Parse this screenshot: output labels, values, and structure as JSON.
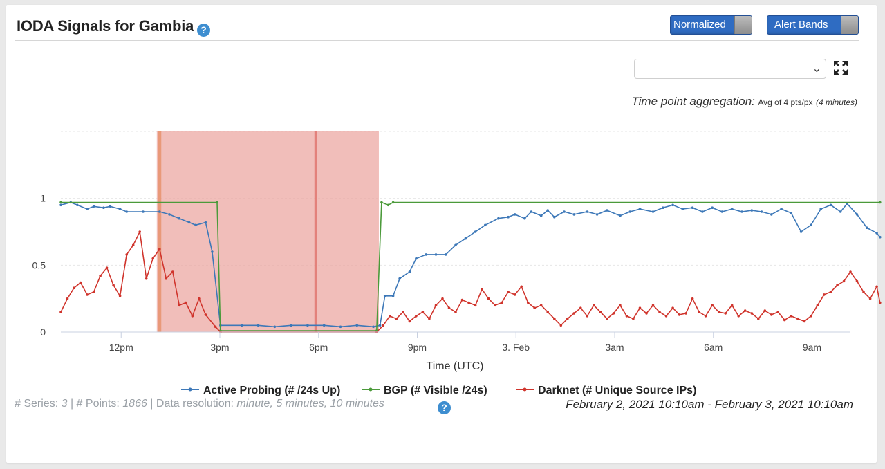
{
  "header": {
    "title": "IODA Signals for Gambia",
    "help_glyph": "?"
  },
  "toggles": {
    "normalized_label": "Normalized",
    "alert_bands_label": "Alert Bands"
  },
  "selector": {
    "value": ""
  },
  "aggregation": {
    "label": "Time point aggregation:",
    "value": "Avg of 4 pts/px",
    "detail": "(4 minutes)"
  },
  "chart_data": {
    "type": "line",
    "xlabel": "Time (UTC)",
    "ylabel": "",
    "x_range": [
      "2021-02-02T10:10",
      "2021-02-03T10:10"
    ],
    "ylim": [
      0,
      1.5
    ],
    "y_ticks": [
      "0",
      "0.5",
      "1"
    ],
    "x_ticks": [
      {
        "t": "2021-02-02T12:00",
        "label": "12pm"
      },
      {
        "t": "2021-02-02T15:00",
        "label": "3pm"
      },
      {
        "t": "2021-02-02T18:00",
        "label": "6pm"
      },
      {
        "t": "2021-02-02T21:00",
        "label": "9pm"
      },
      {
        "t": "2021-02-03T00:00",
        "label": "3. Feb"
      },
      {
        "t": "2021-02-03T03:00",
        "label": "3am"
      },
      {
        "t": "2021-02-03T06:00",
        "label": "6am"
      },
      {
        "t": "2021-02-03T09:00",
        "label": "9am"
      }
    ],
    "alert_band": {
      "start": "2021-02-02T13:05",
      "end": "2021-02-02T19:50",
      "color": "#eba59f"
    },
    "alert_marker": "2021-02-02T17:55",
    "series": [
      {
        "name": "Active Probing (# /24s Up)",
        "color": "#3d78b8",
        "points": [
          [
            0,
            0.95
          ],
          [
            0.3,
            0.97
          ],
          [
            0.5,
            0.95
          ],
          [
            0.8,
            0.92
          ],
          [
            1,
            0.94
          ],
          [
            1.3,
            0.93
          ],
          [
            1.5,
            0.94
          ],
          [
            1.8,
            0.92
          ],
          [
            2,
            0.9
          ],
          [
            2.5,
            0.9
          ],
          [
            3,
            0.9
          ],
          [
            3.3,
            0.88
          ],
          [
            3.6,
            0.85
          ],
          [
            3.9,
            0.82
          ],
          [
            4.1,
            0.8
          ],
          [
            4.4,
            0.82
          ],
          [
            4.6,
            0.6
          ],
          [
            4.85,
            0.05
          ],
          [
            5.5,
            0.05
          ],
          [
            6,
            0.05
          ],
          [
            6.5,
            0.04
          ],
          [
            7,
            0.05
          ],
          [
            7.5,
            0.05
          ],
          [
            8,
            0.05
          ],
          [
            8.5,
            0.04
          ],
          [
            9,
            0.05
          ],
          [
            9.5,
            0.04
          ],
          [
            9.7,
            0.05
          ],
          [
            9.85,
            0.27
          ],
          [
            10.1,
            0.27
          ],
          [
            10.3,
            0.4
          ],
          [
            10.6,
            0.45
          ],
          [
            10.8,
            0.55
          ],
          [
            11.1,
            0.58
          ],
          [
            11.4,
            0.58
          ],
          [
            11.7,
            0.58
          ],
          [
            12,
            0.65
          ],
          [
            12.3,
            0.7
          ],
          [
            12.6,
            0.75
          ],
          [
            12.9,
            0.8
          ],
          [
            13.3,
            0.85
          ],
          [
            13.6,
            0.86
          ],
          [
            13.8,
            0.88
          ],
          [
            14.1,
            0.85
          ],
          [
            14.3,
            0.9
          ],
          [
            14.6,
            0.87
          ],
          [
            14.8,
            0.91
          ],
          [
            15,
            0.86
          ],
          [
            15.3,
            0.9
          ],
          [
            15.6,
            0.88
          ],
          [
            16,
            0.9
          ],
          [
            16.3,
            0.88
          ],
          [
            16.6,
            0.91
          ],
          [
            17,
            0.87
          ],
          [
            17.3,
            0.9
          ],
          [
            17.6,
            0.92
          ],
          [
            18,
            0.9
          ],
          [
            18.3,
            0.93
          ],
          [
            18.6,
            0.95
          ],
          [
            18.9,
            0.92
          ],
          [
            19.2,
            0.93
          ],
          [
            19.5,
            0.9
          ],
          [
            19.8,
            0.93
          ],
          [
            20.1,
            0.9
          ],
          [
            20.4,
            0.92
          ],
          [
            20.7,
            0.9
          ],
          [
            21,
            0.91
          ],
          [
            21.3,
            0.9
          ],
          [
            21.6,
            0.88
          ],
          [
            21.9,
            0.92
          ],
          [
            22.2,
            0.89
          ],
          [
            22.5,
            0.75
          ],
          [
            22.8,
            0.8
          ],
          [
            23.1,
            0.92
          ],
          [
            23.4,
            0.95
          ],
          [
            23.7,
            0.9
          ],
          [
            23.9,
            0.96
          ],
          [
            24.2,
            0.88
          ],
          [
            24.5,
            0.78
          ],
          [
            24.8,
            0.74
          ],
          [
            24.9,
            0.71
          ]
        ]
      },
      {
        "name": "BGP (# Visible /24s)",
        "color": "#4b9a3a",
        "points": [
          [
            0,
            0.97
          ],
          [
            4.75,
            0.97
          ],
          [
            4.85,
            0.01
          ],
          [
            9.6,
            0.01
          ],
          [
            9.75,
            0.97
          ],
          [
            9.95,
            0.95
          ],
          [
            10.1,
            0.97
          ],
          [
            24.9,
            0.97
          ]
        ]
      },
      {
        "name": "Darknet (# Unique Source IPs)",
        "color": "#d0342c",
        "points": [
          [
            0,
            0.15
          ],
          [
            0.2,
            0.25
          ],
          [
            0.4,
            0.33
          ],
          [
            0.6,
            0.37
          ],
          [
            0.8,
            0.28
          ],
          [
            1,
            0.3
          ],
          [
            1.2,
            0.42
          ],
          [
            1.4,
            0.48
          ],
          [
            1.6,
            0.35
          ],
          [
            1.8,
            0.27
          ],
          [
            2,
            0.58
          ],
          [
            2.2,
            0.65
          ],
          [
            2.4,
            0.75
          ],
          [
            2.6,
            0.4
          ],
          [
            2.8,
            0.55
          ],
          [
            3,
            0.62
          ],
          [
            3.2,
            0.4
          ],
          [
            3.4,
            0.45
          ],
          [
            3.6,
            0.2
          ],
          [
            3.8,
            0.22
          ],
          [
            4,
            0.12
          ],
          [
            4.2,
            0.25
          ],
          [
            4.4,
            0.13
          ],
          [
            4.7,
            0.04
          ],
          [
            4.85,
            0.0
          ],
          [
            9.6,
            0.0
          ],
          [
            9.8,
            0.05
          ],
          [
            10,
            0.12
          ],
          [
            10.2,
            0.1
          ],
          [
            10.4,
            0.15
          ],
          [
            10.6,
            0.08
          ],
          [
            10.8,
            0.12
          ],
          [
            11,
            0.15
          ],
          [
            11.2,
            0.1
          ],
          [
            11.4,
            0.2
          ],
          [
            11.6,
            0.25
          ],
          [
            11.8,
            0.18
          ],
          [
            12,
            0.15
          ],
          [
            12.2,
            0.24
          ],
          [
            12.4,
            0.22
          ],
          [
            12.6,
            0.2
          ],
          [
            12.8,
            0.32
          ],
          [
            13,
            0.25
          ],
          [
            13.2,
            0.2
          ],
          [
            13.4,
            0.22
          ],
          [
            13.6,
            0.3
          ],
          [
            13.8,
            0.28
          ],
          [
            14,
            0.34
          ],
          [
            14.2,
            0.22
          ],
          [
            14.4,
            0.18
          ],
          [
            14.6,
            0.2
          ],
          [
            14.8,
            0.15
          ],
          [
            15,
            0.1
          ],
          [
            15.2,
            0.05
          ],
          [
            15.4,
            0.1
          ],
          [
            15.6,
            0.14
          ],
          [
            15.8,
            0.18
          ],
          [
            16,
            0.12
          ],
          [
            16.2,
            0.2
          ],
          [
            16.4,
            0.15
          ],
          [
            16.6,
            0.1
          ],
          [
            16.8,
            0.14
          ],
          [
            17,
            0.2
          ],
          [
            17.2,
            0.12
          ],
          [
            17.4,
            0.1
          ],
          [
            17.6,
            0.18
          ],
          [
            17.8,
            0.14
          ],
          [
            18,
            0.2
          ],
          [
            18.2,
            0.15
          ],
          [
            18.4,
            0.12
          ],
          [
            18.6,
            0.18
          ],
          [
            18.8,
            0.13
          ],
          [
            19,
            0.14
          ],
          [
            19.2,
            0.25
          ],
          [
            19.4,
            0.15
          ],
          [
            19.6,
            0.12
          ],
          [
            19.8,
            0.2
          ],
          [
            20,
            0.15
          ],
          [
            20.2,
            0.14
          ],
          [
            20.4,
            0.2
          ],
          [
            20.6,
            0.12
          ],
          [
            20.8,
            0.16
          ],
          [
            21,
            0.14
          ],
          [
            21.2,
            0.1
          ],
          [
            21.4,
            0.16
          ],
          [
            21.6,
            0.13
          ],
          [
            21.8,
            0.15
          ],
          [
            22,
            0.09
          ],
          [
            22.2,
            0.12
          ],
          [
            22.4,
            0.1
          ],
          [
            22.6,
            0.08
          ],
          [
            22.8,
            0.12
          ],
          [
            23,
            0.2
          ],
          [
            23.2,
            0.28
          ],
          [
            23.4,
            0.3
          ],
          [
            23.6,
            0.35
          ],
          [
            23.8,
            0.38
          ],
          [
            24,
            0.45
          ],
          [
            24.2,
            0.38
          ],
          [
            24.4,
            0.3
          ],
          [
            24.6,
            0.25
          ],
          [
            24.8,
            0.34
          ],
          [
            24.9,
            0.22
          ]
        ]
      }
    ]
  },
  "legend": [
    {
      "label": "Active Probing (# /24s Up)",
      "color": "#3d78b8"
    },
    {
      "label": "BGP (# Visible /24s)",
      "color": "#4b9a3a"
    },
    {
      "label": "Darknet (# Unique Source IPs)",
      "color": "#d0342c"
    }
  ],
  "footer": {
    "series_label": "# Series:",
    "series_count": "3",
    "points_label": "# Points:",
    "points_count": "1866",
    "resolution_label": "Data resolution:",
    "resolution_value": "minute, 5 minutes, 10 minutes",
    "date_range": "February 2, 2021 10:10am - February 3, 2021 10:10am"
  }
}
